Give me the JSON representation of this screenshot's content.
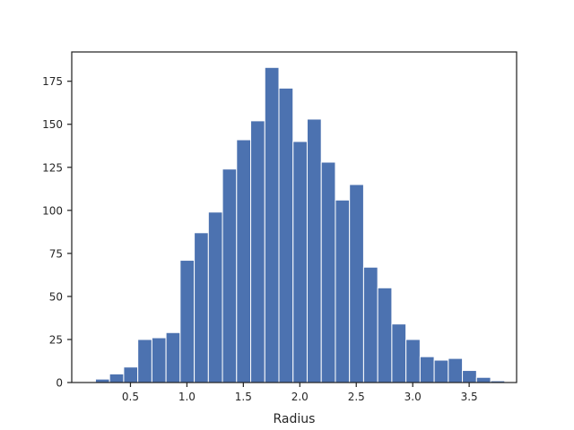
{
  "chart_data": {
    "type": "bar",
    "subtype": "histogram",
    "title": "",
    "xlabel": "Radius",
    "ylabel": "",
    "bin_start": 0.19,
    "bin_width": 0.125,
    "counts": [
      2,
      5,
      9,
      25,
      26,
      29,
      71,
      87,
      99,
      124,
      141,
      152,
      183,
      171,
      140,
      153,
      128,
      106,
      115,
      67,
      55,
      34,
      25,
      15,
      13,
      14,
      7,
      3,
      1
    ],
    "xlim": [
      -0.02,
      3.92
    ],
    "ylim": [
      0,
      192
    ],
    "x_ticks": [
      0.5,
      1.0,
      1.5,
      2.0,
      2.5,
      3.0,
      3.5
    ],
    "x_tick_labels": [
      "0.5",
      "1.0",
      "1.5",
      "2.0",
      "2.5",
      "3.0",
      "3.5"
    ],
    "y_ticks": [
      0,
      25,
      50,
      75,
      100,
      125,
      150,
      175
    ],
    "y_tick_labels": [
      "0",
      "25",
      "50",
      "75",
      "100",
      "125",
      "150",
      "175"
    ],
    "grid": false,
    "bar_color": "#4c72b0",
    "edge_color": "#ffffff"
  }
}
